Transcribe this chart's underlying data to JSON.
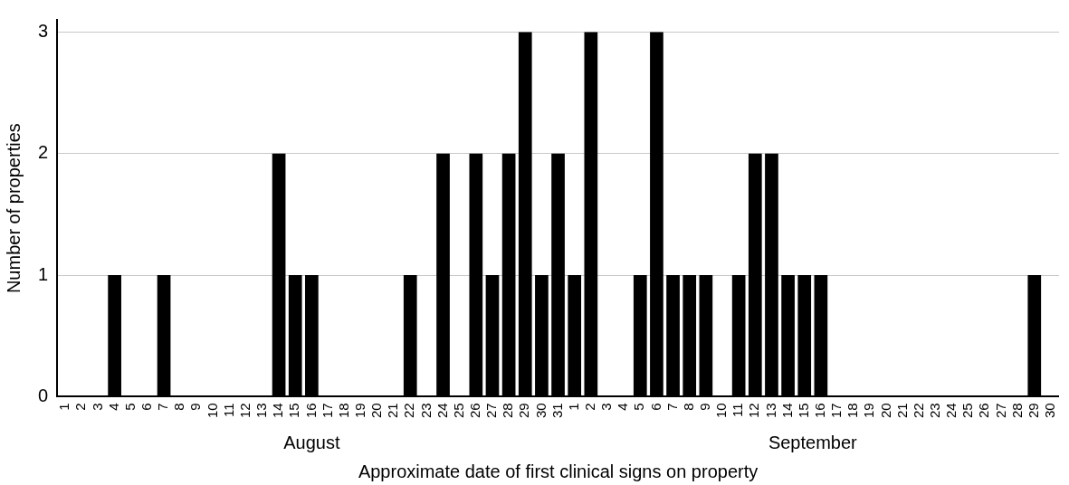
{
  "chart_data": {
    "type": "bar",
    "xlabel": "Approximate date of first clinical signs on property",
    "ylabel": "Number of properties",
    "categories": [
      "1",
      "2",
      "3",
      "4",
      "5",
      "6",
      "7",
      "8",
      "9",
      "10",
      "11",
      "12",
      "13",
      "14",
      "15",
      "16",
      "17",
      "18",
      "19",
      "20",
      "21",
      "22",
      "23",
      "24",
      "25",
      "26",
      "27",
      "28",
      "29",
      "30",
      "31",
      "1",
      "2",
      "3",
      "4",
      "5",
      "6",
      "7",
      "8",
      "9",
      "10",
      "11",
      "12",
      "13",
      "14",
      "15",
      "16",
      "17",
      "18",
      "19",
      "20",
      "21",
      "22",
      "23",
      "24",
      "25",
      "26",
      "27",
      "28",
      "29",
      "30"
    ],
    "values": [
      0,
      0,
      0,
      1,
      0,
      0,
      1,
      0,
      0,
      0,
      0,
      0,
      0,
      2,
      1,
      1,
      0,
      0,
      0,
      0,
      0,
      1,
      0,
      2,
      0,
      2,
      1,
      2,
      3,
      1,
      2,
      1,
      3,
      0,
      0,
      1,
      3,
      1,
      1,
      1,
      0,
      1,
      2,
      2,
      1,
      1,
      1,
      0,
      0,
      0,
      0,
      0,
      0,
      0,
      0,
      0,
      0,
      0,
      0,
      1,
      0
    ],
    "color": "#000000",
    "ylim": [
      0,
      3.1
    ],
    "yticks": [
      0,
      1,
      2,
      3
    ],
    "grid": "y",
    "legend": false,
    "annotations": [
      "August",
      "September"
    ]
  }
}
